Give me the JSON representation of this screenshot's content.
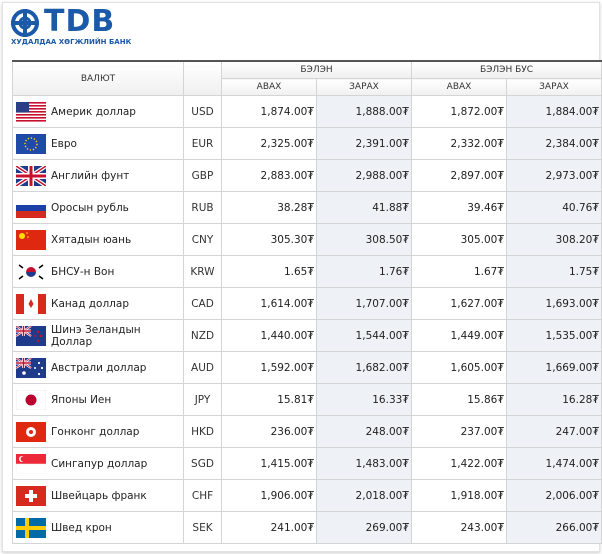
{
  "logo": {
    "name": "TDB",
    "tagline": "ХУДАЛДАА ХӨГЖЛИЙН БАНК"
  },
  "table": {
    "header": {
      "currency": "ВАЛЮТ",
      "groups": [
        "БЭЛЭН",
        "БЭЛЭН БУС"
      ],
      "subheaders": [
        "АВАХ",
        "ЗАРАХ",
        "АВАХ",
        "ЗАРАХ"
      ]
    },
    "rows": [
      [
        "Америк доллар",
        "USD",
        "1,874.00₮",
        "1,888.00₮",
        "1,872.00₮",
        "1,884.00₮"
      ],
      [
        "Евро",
        "EUR",
        "2,325.00₮",
        "2,391.00₮",
        "2,332.00₮",
        "2,384.00₮"
      ],
      [
        "Английн фунт",
        "GBP",
        "2,883.00₮",
        "2,988.00₮",
        "2,897.00₮",
        "2,973.00₮"
      ],
      [
        "Оросын рубль",
        "RUB",
        "38.28₮",
        "41.88₮",
        "39.46₮",
        "40.76₮"
      ],
      [
        "Хятадын юань",
        "CNY",
        "305.30₮",
        "308.50₮",
        "305.00₮",
        "308.20₮"
      ],
      [
        "БНСУ-н Вон",
        "KRW",
        "1.65₮",
        "1.76₮",
        "1.67₮",
        "1.75₮"
      ],
      [
        "Канад доллар",
        "CAD",
        "1,614.00₮",
        "1,707.00₮",
        "1,627.00₮",
        "1,693.00₮"
      ],
      [
        "Шинэ Зеландын Доллар",
        "NZD",
        "1,440.00₮",
        "1,544.00₮",
        "1,449.00₮",
        "1,535.00₮"
      ],
      [
        "Австрали доллар",
        "AUD",
        "1,592.00₮",
        "1,682.00₮",
        "1,605.00₮",
        "1,669.00₮"
      ],
      [
        "Японы Иен",
        "JPY",
        "15.81₮",
        "16.33₮",
        "15.86₮",
        "16.28₮"
      ],
      [
        "Гонконг доллар",
        "HKD",
        "236.00₮",
        "248.00₮",
        "237.00₮",
        "247.00₮"
      ],
      [
        "Сингапур доллар",
        "SGD",
        "1,415.00₮",
        "1,483.00₮",
        "1,422.00₮",
        "1,474.00₮"
      ],
      [
        "Швейцарь франк",
        "CHF",
        "1,906.00₮",
        "2,018.00₮",
        "1,918.00₮",
        "2,006.00₮"
      ],
      [
        "Швед крон",
        "SEK",
        "241.00₮",
        "269.00₮",
        "243.00₮",
        "266.00₮"
      ]
    ]
  }
}
